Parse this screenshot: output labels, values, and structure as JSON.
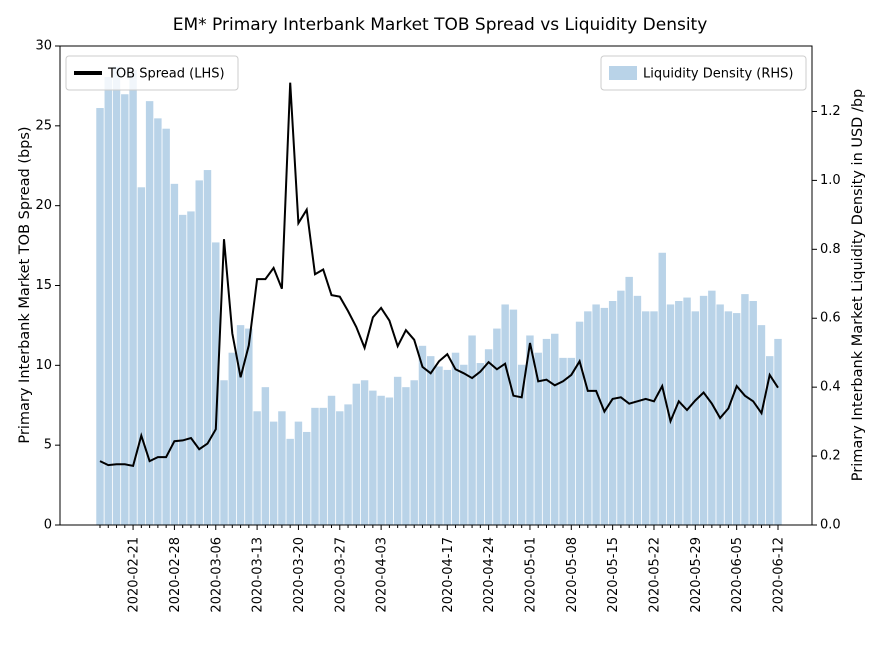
{
  "chart_data": {
    "type": "bar_line",
    "title": "EM* Primary Interbank Market TOB Spread vs Liquidity Density",
    "y_label": "Primary Interbank Market TOB Spread (bps)",
    "y2_label": "Primary Interbank Market Liquidity Density in USD /bp",
    "categories": [
      null,
      null,
      null,
      null,
      "2020-02-21",
      null,
      null,
      null,
      null,
      "2020-02-28",
      null,
      null,
      null,
      null,
      "2020-03-06",
      null,
      null,
      null,
      null,
      "2020-03-13",
      null,
      null,
      null,
      null,
      "2020-03-20",
      null,
      null,
      null,
      null,
      "2020-03-27",
      null,
      null,
      null,
      null,
      "2020-04-03",
      null,
      null,
      null,
      null,
      null,
      null,
      null,
      "2020-04-17",
      null,
      null,
      null,
      null,
      "2020-04-24",
      null,
      null,
      null,
      null,
      "2020-05-01",
      null,
      null,
      null,
      null,
      "2020-05-08",
      null,
      null,
      null,
      null,
      "2020-05-15",
      null,
      null,
      null,
      null,
      "2020-05-22",
      null,
      null,
      null,
      null,
      "2020-05-29",
      null,
      null,
      null,
      null,
      "2020-06-05",
      null,
      null,
      null,
      null,
      "2020-06-12"
    ],
    "series": [
      {
        "name": "TOB Spread (LHS)",
        "type": "line",
        "axis": "y",
        "color": "#000000",
        "values": [
          4.0,
          3.75,
          3.8,
          3.8,
          3.7,
          5.6,
          4.0,
          4.25,
          4.25,
          5.25,
          5.3,
          5.45,
          4.75,
          5.1,
          6.0,
          17.9,
          12.0,
          9.25,
          11.25,
          15.4,
          15.4,
          16.1,
          14.8,
          27.7,
          18.9,
          19.75,
          15.7,
          16.0,
          14.4,
          14.3,
          13.4,
          12.4,
          11.1,
          13.0,
          13.6,
          12.8,
          11.2,
          12.2,
          11.6,
          9.9,
          9.5,
          10.25,
          10.7,
          9.75,
          9.5,
          9.2,
          9.6,
          10.2,
          9.75,
          10.1,
          8.1,
          8.0,
          11.4,
          9.0,
          9.1,
          8.75,
          9.0,
          9.4,
          10.25,
          8.4,
          8.4,
          7.1,
          7.9,
          8.0,
          7.6,
          7.75,
          7.9,
          7.75,
          8.7,
          6.5,
          7.75,
          7.2,
          7.8,
          8.3,
          7.6,
          6.7,
          7.3,
          8.7,
          8.1,
          7.75,
          7.0,
          9.4,
          8.6
        ]
      },
      {
        "name": "Liquidity Density (RHS)",
        "type": "bar",
        "axis": "y2",
        "color": "#b9d3e8",
        "values": [
          1.21,
          1.3,
          1.33,
          1.25,
          1.32,
          0.98,
          1.23,
          1.18,
          1.15,
          0.99,
          0.9,
          0.91,
          1.0,
          1.03,
          0.82,
          0.42,
          0.5,
          0.58,
          0.57,
          0.33,
          0.4,
          0.3,
          0.33,
          0.25,
          0.3,
          0.27,
          0.34,
          0.34,
          0.375,
          0.33,
          0.35,
          0.41,
          0.42,
          0.39,
          0.375,
          0.37,
          0.43,
          0.4,
          0.42,
          0.52,
          0.49,
          0.46,
          0.45,
          0.5,
          0.465,
          0.55,
          0.47,
          0.51,
          0.57,
          0.64,
          0.625,
          0.465,
          0.55,
          0.5,
          0.54,
          0.555,
          0.485,
          0.485,
          0.59,
          0.62,
          0.64,
          0.63,
          0.65,
          0.68,
          0.72,
          0.665,
          0.62,
          0.62,
          0.79,
          0.64,
          0.65,
          0.66,
          0.62,
          0.665,
          0.68,
          0.64,
          0.62,
          0.615,
          0.67,
          0.65,
          0.58,
          0.49,
          0.54
        ]
      }
    ],
    "ylim": [
      0,
      30
    ],
    "yticks": [
      0,
      5,
      10,
      15,
      20,
      25,
      30
    ],
    "y2lim": [
      0,
      1.39
    ],
    "y2ticks": [
      {
        "value": 0,
        "label": "0.0"
      },
      0.2,
      0.4,
      0.6,
      0.8,
      {
        "value": 1,
        "label": "1.0"
      },
      1.2
    ],
    "legend": [
      "upper left",
      "upper right"
    ]
  }
}
